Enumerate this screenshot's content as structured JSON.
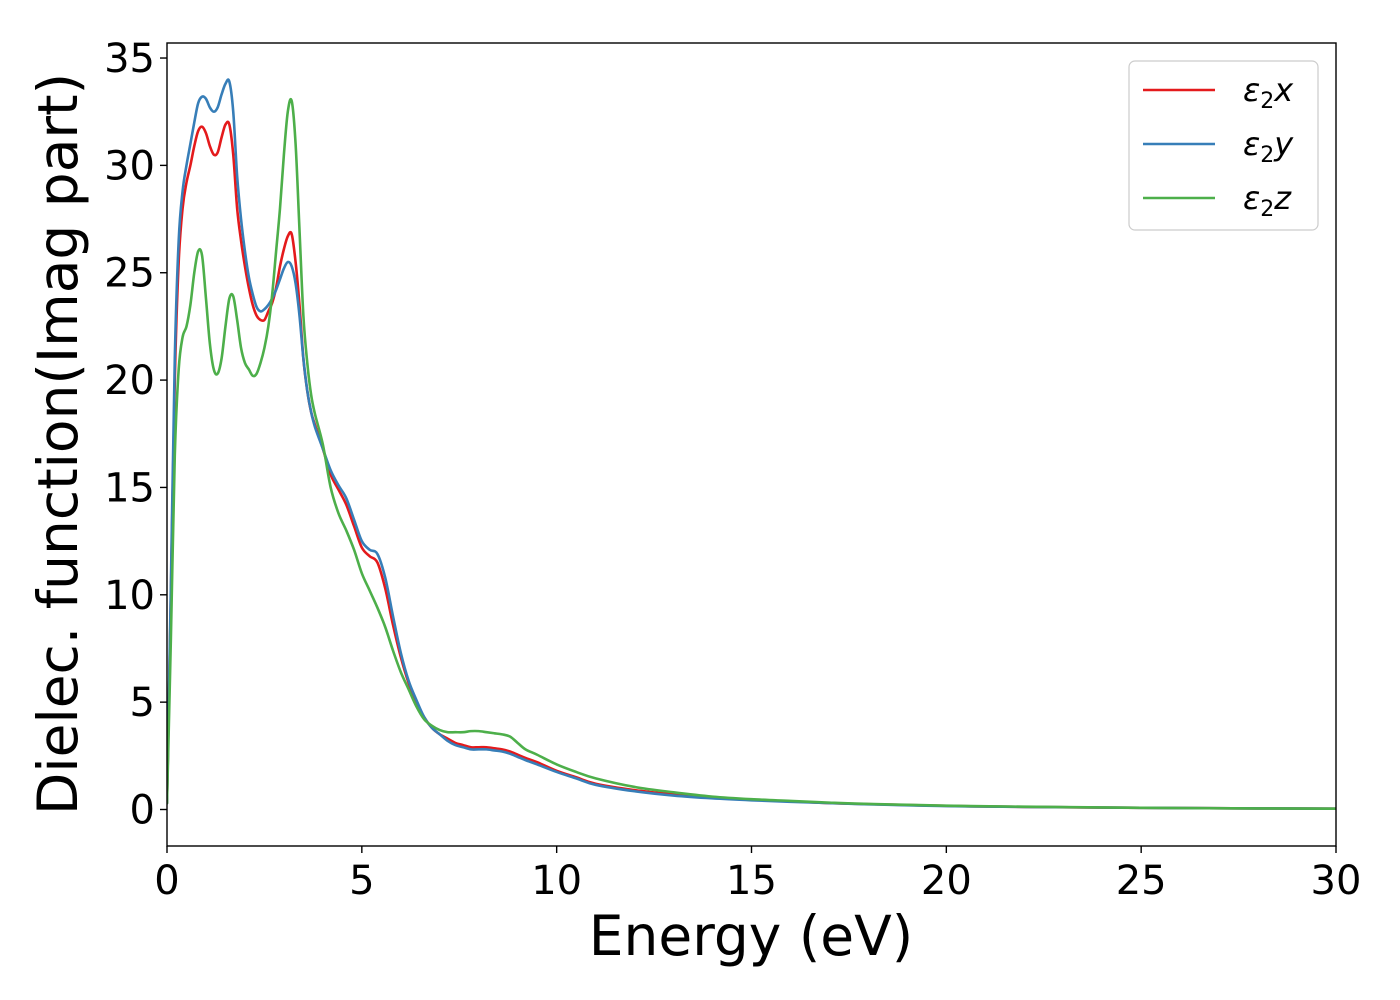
{
  "chart_data": {
    "type": "line",
    "title": "",
    "xlabel": "Energy (eV)",
    "ylabel": "Dielec. function(Imag part)",
    "xlim": [
      0,
      30
    ],
    "ylim": [
      -1.7,
      35.7
    ],
    "xticks": [
      0,
      5,
      10,
      15,
      20,
      25,
      30
    ],
    "yticks": [
      0,
      5,
      10,
      15,
      20,
      25,
      30,
      35
    ],
    "grid": false,
    "legend_position": "top-right",
    "series": [
      {
        "name": "ε₂x",
        "legend_base": "ε",
        "legend_sub": "2",
        "legend_suffix": "x",
        "color": "#e41a1c",
        "x": [
          0,
          0.1,
          0.2,
          0.3,
          0.4,
          0.5,
          0.6,
          0.7,
          0.8,
          0.9,
          1.0,
          1.1,
          1.2,
          1.3,
          1.4,
          1.5,
          1.6,
          1.7,
          1.8,
          1.9,
          2.0,
          2.1,
          2.2,
          2.3,
          2.4,
          2.5,
          2.6,
          2.7,
          2.8,
          2.9,
          3.0,
          3.1,
          3.2,
          3.3,
          3.4,
          3.5,
          3.6,
          3.7,
          3.8,
          4.0,
          4.2,
          4.4,
          4.6,
          4.8,
          5.0,
          5.2,
          5.4,
          5.6,
          5.8,
          6.0,
          6.2,
          6.4,
          6.6,
          6.8,
          7.0,
          7.2,
          7.4,
          7.6,
          7.8,
          8.0,
          8.2,
          8.4,
          8.6,
          8.8,
          9.0,
          9.2,
          9.5,
          10.0,
          10.5,
          11.0,
          12.0,
          13.0,
          14.0,
          15.0,
          16.0,
          17.0,
          18.0,
          20.0,
          22.0,
          25.0,
          28.0,
          30.0
        ],
        "y": [
          0.3,
          10.0,
          20.0,
          25.5,
          28.0,
          29.2,
          30.0,
          30.9,
          31.6,
          31.8,
          31.5,
          30.9,
          30.5,
          30.6,
          31.3,
          31.9,
          31.9,
          30.5,
          28.0,
          26.5,
          25.3,
          24.3,
          23.5,
          23.0,
          22.8,
          22.8,
          23.2,
          23.6,
          24.3,
          25.3,
          26.1,
          26.7,
          26.8,
          25.5,
          23.5,
          21.0,
          19.5,
          18.5,
          17.9,
          16.8,
          15.6,
          14.9,
          14.2,
          13.2,
          12.2,
          11.8,
          11.5,
          10.3,
          8.6,
          7.1,
          5.9,
          5.0,
          4.3,
          3.8,
          3.5,
          3.3,
          3.1,
          3.0,
          2.9,
          2.9,
          2.9,
          2.85,
          2.8,
          2.7,
          2.55,
          2.4,
          2.2,
          1.8,
          1.5,
          1.2,
          0.9,
          0.7,
          0.55,
          0.45,
          0.38,
          0.3,
          0.25,
          0.17,
          0.12,
          0.08,
          0.05,
          0.04
        ]
      },
      {
        "name": "ε₂y",
        "legend_base": "ε",
        "legend_sub": "2",
        "legend_suffix": "y",
        "color": "#377eb8",
        "x": [
          0,
          0.1,
          0.2,
          0.3,
          0.4,
          0.5,
          0.6,
          0.7,
          0.8,
          0.9,
          1.0,
          1.1,
          1.2,
          1.3,
          1.4,
          1.5,
          1.6,
          1.7,
          1.8,
          1.9,
          2.0,
          2.1,
          2.2,
          2.3,
          2.4,
          2.5,
          2.6,
          2.7,
          2.8,
          2.9,
          3.0,
          3.1,
          3.2,
          3.3,
          3.4,
          3.5,
          3.6,
          3.7,
          3.8,
          4.0,
          4.2,
          4.4,
          4.6,
          4.8,
          5.0,
          5.2,
          5.4,
          5.6,
          5.8,
          6.0,
          6.2,
          6.4,
          6.6,
          6.8,
          7.0,
          7.2,
          7.4,
          7.6,
          7.8,
          8.0,
          8.2,
          8.4,
          8.6,
          8.8,
          9.0,
          9.2,
          9.5,
          10.0,
          10.5,
          11.0,
          12.0,
          13.0,
          14.0,
          15.0,
          16.0,
          17.0,
          18.0,
          20.0,
          22.0,
          25.0,
          28.0,
          30.0
        ],
        "y": [
          0.3,
          10.5,
          21.0,
          26.5,
          28.8,
          30.0,
          31.0,
          32.0,
          32.9,
          33.2,
          33.1,
          32.7,
          32.5,
          32.7,
          33.3,
          33.8,
          33.9,
          32.5,
          29.5,
          27.5,
          26.0,
          24.8,
          24.0,
          23.4,
          23.2,
          23.3,
          23.5,
          23.8,
          24.2,
          24.7,
          25.2,
          25.5,
          25.3,
          24.5,
          23.0,
          21.0,
          19.5,
          18.5,
          17.8,
          16.8,
          15.8,
          15.1,
          14.5,
          13.5,
          12.5,
          12.1,
          11.9,
          10.8,
          9.0,
          7.3,
          6.0,
          5.1,
          4.3,
          3.8,
          3.5,
          3.2,
          3.0,
          2.9,
          2.8,
          2.8,
          2.8,
          2.75,
          2.7,
          2.6,
          2.45,
          2.3,
          2.1,
          1.75,
          1.45,
          1.15,
          0.85,
          0.65,
          0.52,
          0.43,
          0.36,
          0.3,
          0.24,
          0.16,
          0.12,
          0.08,
          0.05,
          0.04
        ]
      },
      {
        "name": "ε₂z",
        "legend_base": "ε",
        "legend_sub": "2",
        "legend_suffix": "z",
        "color": "#4daf4a",
        "x": [
          0,
          0.1,
          0.2,
          0.3,
          0.4,
          0.5,
          0.6,
          0.7,
          0.8,
          0.9,
          1.0,
          1.1,
          1.2,
          1.3,
          1.4,
          1.5,
          1.6,
          1.7,
          1.8,
          1.9,
          2.0,
          2.1,
          2.2,
          2.3,
          2.4,
          2.5,
          2.6,
          2.7,
          2.8,
          2.9,
          3.0,
          3.1,
          3.2,
          3.3,
          3.4,
          3.5,
          3.6,
          3.7,
          3.8,
          4.0,
          4.2,
          4.4,
          4.6,
          4.8,
          5.0,
          5.2,
          5.4,
          5.6,
          5.8,
          6.0,
          6.2,
          6.4,
          6.6,
          6.8,
          7.0,
          7.2,
          7.4,
          7.6,
          7.8,
          8.0,
          8.2,
          8.4,
          8.6,
          8.8,
          9.0,
          9.2,
          9.5,
          10.0,
          10.5,
          11.0,
          12.0,
          13.0,
          14.0,
          15.0,
          16.0,
          17.0,
          18.0,
          20.0,
          22.0,
          25.0,
          28.0,
          30.0
        ],
        "y": [
          0.3,
          8.0,
          16.5,
          20.5,
          22.0,
          22.5,
          23.5,
          25.0,
          26.0,
          25.8,
          23.8,
          21.7,
          20.5,
          20.3,
          21.0,
          22.5,
          23.8,
          23.9,
          22.8,
          21.5,
          20.8,
          20.5,
          20.2,
          20.3,
          20.8,
          21.5,
          22.5,
          24.0,
          26.0,
          28.0,
          30.5,
          32.5,
          33.0,
          31.0,
          27.0,
          23.0,
          20.8,
          19.3,
          18.4,
          17.0,
          15.0,
          13.8,
          13.0,
          12.1,
          11.0,
          10.2,
          9.4,
          8.5,
          7.4,
          6.4,
          5.6,
          4.8,
          4.2,
          3.9,
          3.7,
          3.6,
          3.6,
          3.6,
          3.65,
          3.65,
          3.6,
          3.55,
          3.5,
          3.4,
          3.1,
          2.8,
          2.55,
          2.1,
          1.75,
          1.45,
          1.05,
          0.8,
          0.6,
          0.48,
          0.4,
          0.32,
          0.26,
          0.18,
          0.13,
          0.08,
          0.05,
          0.04
        ]
      }
    ]
  }
}
